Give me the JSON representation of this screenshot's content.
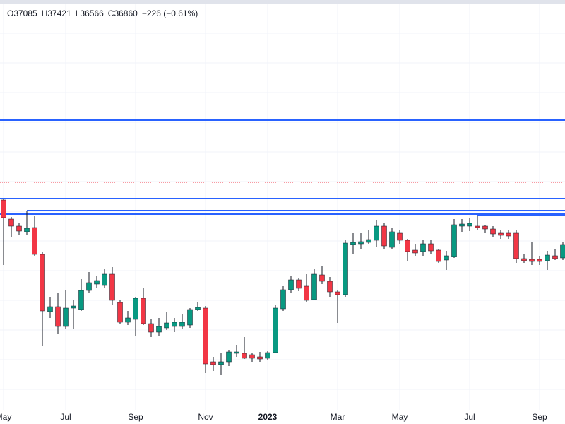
{
  "chart_data": {
    "type": "candlestick",
    "header": [
      "O37085",
      "H37421",
      "L36566",
      "C36860",
      "−226 (−0.61%)"
    ],
    "categories": [
      "May",
      null,
      null,
      null,
      null,
      null,
      null,
      null,
      "Jul",
      null,
      null,
      null,
      null,
      null,
      null,
      null,
      null,
      "Sep",
      null,
      null,
      null,
      null,
      null,
      null,
      null,
      null,
      "Nov",
      null,
      null,
      null,
      null,
      null,
      null,
      null,
      "2023",
      null,
      null,
      null,
      null,
      null,
      null,
      null,
      null,
      "Mar",
      null,
      null,
      null,
      null,
      null,
      null,
      null,
      "May",
      null,
      null,
      null,
      null,
      null,
      null,
      null,
      null,
      "Jul",
      null,
      null,
      null,
      null,
      null,
      null,
      null,
      null,
      "Sep",
      null,
      null,
      null
    ],
    "open": [
      35925,
      35250,
      35000,
      34800,
      34950,
      34000,
      31975,
      32150,
      31450,
      32100,
      32050,
      32725,
      32950,
      32900,
      33300,
      32300,
      31600,
      31700,
      32450,
      31550,
      31250,
      31400,
      31450,
      31450,
      31500,
      32050,
      32100,
      30200,
      30100,
      30200,
      30500,
      30500,
      30450,
      30375,
      30325,
      30525,
      32075,
      32750,
      33100,
      32875,
      32400,
      33275,
      33050,
      32675,
      32575,
      34350,
      34375,
      34425,
      34500,
      35000,
      34250,
      34750,
      34500,
      34150,
      34100,
      34375,
      34150,
      33800,
      33925,
      35000,
      35000,
      35000,
      35000,
      34900,
      34750,
      34750,
      34750,
      33850,
      33825,
      33825,
      33775,
      33950,
      33875
    ],
    "high": [
      35950,
      35325,
      35125,
      35550,
      35375,
      34075,
      32500,
      32625,
      32750,
      32400,
      33125,
      33375,
      33250,
      33500,
      33550,
      32375,
      32000,
      32500,
      32800,
      31700,
      31750,
      31950,
      31750,
      31875,
      32100,
      32325,
      32175,
      30375,
      30500,
      30625,
      30800,
      31075,
      30500,
      30550,
      30575,
      32200,
      32875,
      33250,
      33175,
      33300,
      33500,
      33575,
      33200,
      32750,
      34500,
      34750,
      34750,
      34875,
      35200,
      35100,
      34950,
      34875,
      34550,
      34375,
      34500,
      34500,
      34200,
      34125,
      35250,
      35250,
      35300,
      35375,
      35050,
      35000,
      34875,
      34875,
      34875,
      34000,
      34425,
      33950,
      34125,
      34200,
      34450
    ],
    "low": [
      33625,
      34625,
      34675,
      34700,
      33950,
      30750,
      31750,
      31200,
      31375,
      31350,
      32000,
      32625,
      32800,
      32800,
      32200,
      31550,
      31500,
      31125,
      31500,
      31075,
      31125,
      31325,
      31250,
      31350,
      31400,
      32000,
      29800,
      29875,
      29750,
      30050,
      30375,
      30300,
      30200,
      30200,
      30250,
      30500,
      32000,
      32650,
      32700,
      32325,
      32375,
      32950,
      32500,
      31575,
      32500,
      34000,
      34200,
      34375,
      34250,
      34175,
      34175,
      34375,
      33750,
      33950,
      33950,
      34000,
      33700,
      33450,
      33875,
      34800,
      34825,
      34875,
      34750,
      34625,
      34550,
      34550,
      33700,
      33700,
      33625,
      33625,
      33450,
      33800,
      33800
    ],
    "close": [
      35300,
      35000,
      34825,
      34925,
      34000,
      32000,
      32150,
      31450,
      32100,
      32175,
      32725,
      33000,
      33075,
      33300,
      32375,
      31600,
      31750,
      32450,
      31550,
      31250,
      31450,
      31575,
      31600,
      31600,
      32050,
      32125,
      30125,
      30100,
      30200,
      30550,
      30550,
      30325,
      30325,
      30300,
      30525,
      32100,
      32750,
      33100,
      32800,
      32375,
      33300,
      33050,
      32675,
      32575,
      34400,
      34425,
      34450,
      34525,
      35000,
      34300,
      34800,
      34500,
      34100,
      34050,
      34375,
      34125,
      33750,
      33950,
      35050,
      35075,
      35100,
      34950,
      34900,
      34725,
      34675,
      34650,
      33850,
      33775,
      33750,
      33750,
      33975,
      33850,
      34350
    ],
    "up_color": "#089981",
    "down_color": "#f23645",
    "ylim": [
      28500,
      43000
    ],
    "hlines": [
      38750,
      35975,
      35550,
      35425,
      35400
    ],
    "hline_color": "#2962ff",
    "price_line": 36550,
    "price_line_color": "#f23645"
  }
}
